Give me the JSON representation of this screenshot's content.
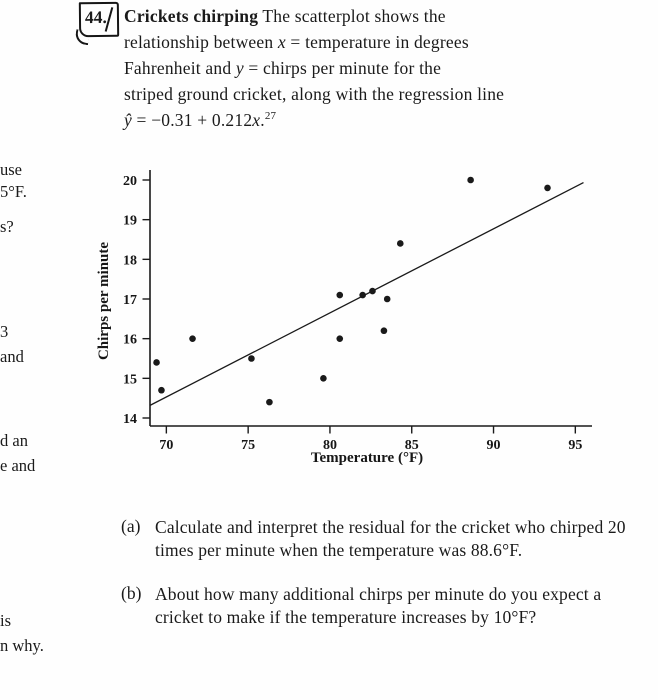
{
  "margin_fragments": [
    {
      "text": "use"
    },
    {
      "text": "5°F."
    },
    {
      "text": "s?"
    },
    {
      "text": "3"
    },
    {
      "text": "and"
    },
    {
      "text": "d an"
    },
    {
      "text": "e and"
    },
    {
      "text": "is"
    },
    {
      "text": "n why."
    }
  ],
  "problem": {
    "number": "44.",
    "body": {
      "l1a": "Crickets chirping",
      "l1b": " The scatterplot shows the",
      "l2a": "relationship between ",
      "l2x": "x",
      "l2b": " = temperature in degrees",
      "l3a": "Fahrenheit and ",
      "l3y": "y",
      "l3b": " = chirps per minute for the",
      "l4": "striped ground cricket, along with the regression line",
      "l5y": "ŷ",
      "l5b": " = −0.31 + 0.212",
      "l5x": "x",
      "l5c": ".",
      "l5sup": "27"
    }
  },
  "chart_data": {
    "type": "scatter",
    "points": [
      [
        69.4,
        15.4
      ],
      [
        69.7,
        14.7
      ],
      [
        71.6,
        16.0
      ],
      [
        75.2,
        15.5
      ],
      [
        76.3,
        14.4
      ],
      [
        79.6,
        15.0
      ],
      [
        80.6,
        16.0
      ],
      [
        80.6,
        17.1
      ],
      [
        82.0,
        17.1
      ],
      [
        82.6,
        17.2
      ],
      [
        83.3,
        16.2
      ],
      [
        83.5,
        17.0
      ],
      [
        84.3,
        18.4
      ],
      [
        88.6,
        20.0
      ],
      [
        93.3,
        19.8
      ]
    ],
    "regression_line": {
      "intercept": -0.31,
      "slope": 0.212
    },
    "xlabel": "Temperature (°F)",
    "ylabel": "Chirps per minute",
    "x_ticks": [
      70,
      75,
      80,
      85,
      90,
      95
    ],
    "y_ticks": [
      14,
      15,
      16,
      17,
      18,
      19,
      20
    ],
    "xlim": [
      69,
      95.5
    ],
    "ylim": [
      13.85,
      20.3
    ],
    "point_color": "#1a1a1a",
    "line_color": "#1a1a1a",
    "grid": false,
    "legend": "none"
  },
  "questions": [
    {
      "label": "(a)",
      "text": "Calculate and interpret the residual for the cricket who chirped 20 times per minute when the temperature was 88.6°F."
    },
    {
      "label": "(b)",
      "text": "About how many additional chirps per minute do you expect a cricket to make if the temperature increases by 10°F?"
    }
  ]
}
